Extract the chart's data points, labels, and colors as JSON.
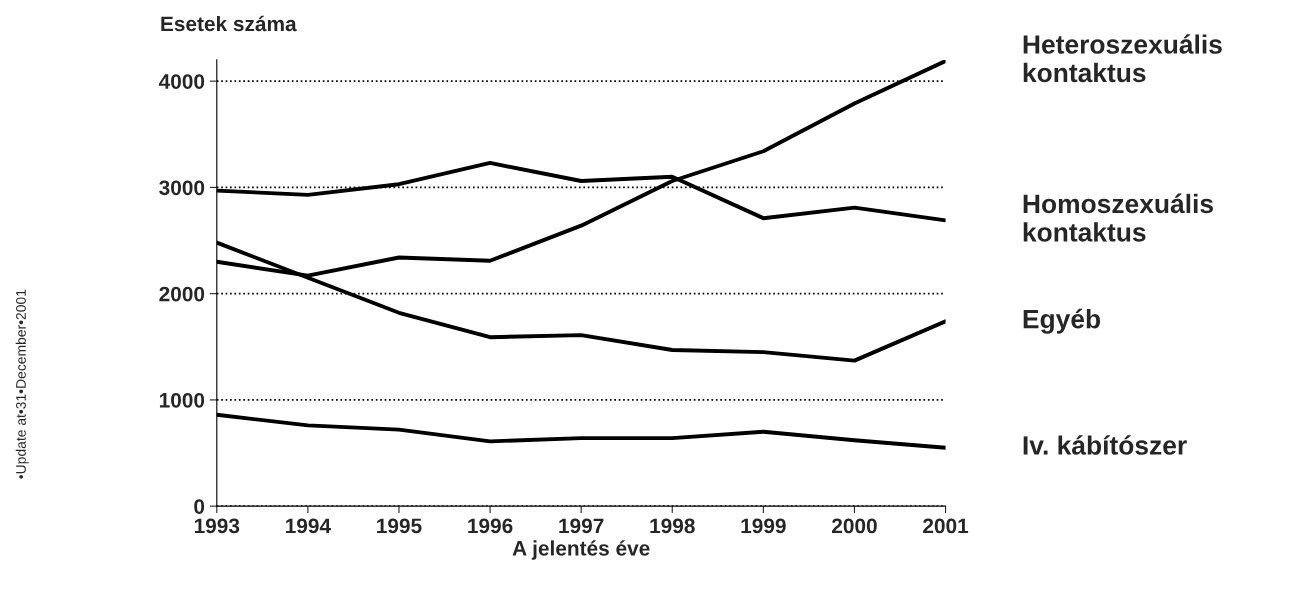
{
  "chart_data": {
    "type": "line",
    "xlabel": "A jelentés éve",
    "ylabel": "Esetek száma",
    "x": [
      1993,
      1994,
      1995,
      1996,
      1997,
      1998,
      1999,
      2000,
      2001
    ],
    "series": [
      {
        "name": "Heteroszexuális kontaktus",
        "color": "#000000",
        "values": [
          2300,
          2170,
          2340,
          2310,
          2640,
          3060,
          3340,
          3790,
          4190
        ]
      },
      {
        "name": "Homoszexuális kontaktus",
        "color": "#000000",
        "values": [
          2970,
          2930,
          3030,
          3230,
          3060,
          3100,
          2710,
          2810,
          2690
        ]
      },
      {
        "name": "Egyéb",
        "color": "#000000",
        "values": [
          2480,
          2150,
          1820,
          1590,
          1610,
          1470,
          1450,
          1370,
          1740
        ]
      },
      {
        "name": "Iv. kábítószer",
        "color": "#000000",
        "values": [
          860,
          760,
          720,
          610,
          640,
          640,
          700,
          620,
          550
        ]
      }
    ],
    "xlim": [
      1993,
      2001
    ],
    "xticks": [
      1993,
      1994,
      1995,
      1996,
      1997,
      1998,
      1999,
      2000,
      2001
    ],
    "ylim": [
      0,
      4200
    ],
    "yticks": [
      0,
      1000,
      2000,
      3000,
      4000
    ],
    "grid": "y",
    "legend": false,
    "marker": "none",
    "line_style": "solid",
    "annotations": [
      "•Update at•31•December•2001"
    ]
  }
}
